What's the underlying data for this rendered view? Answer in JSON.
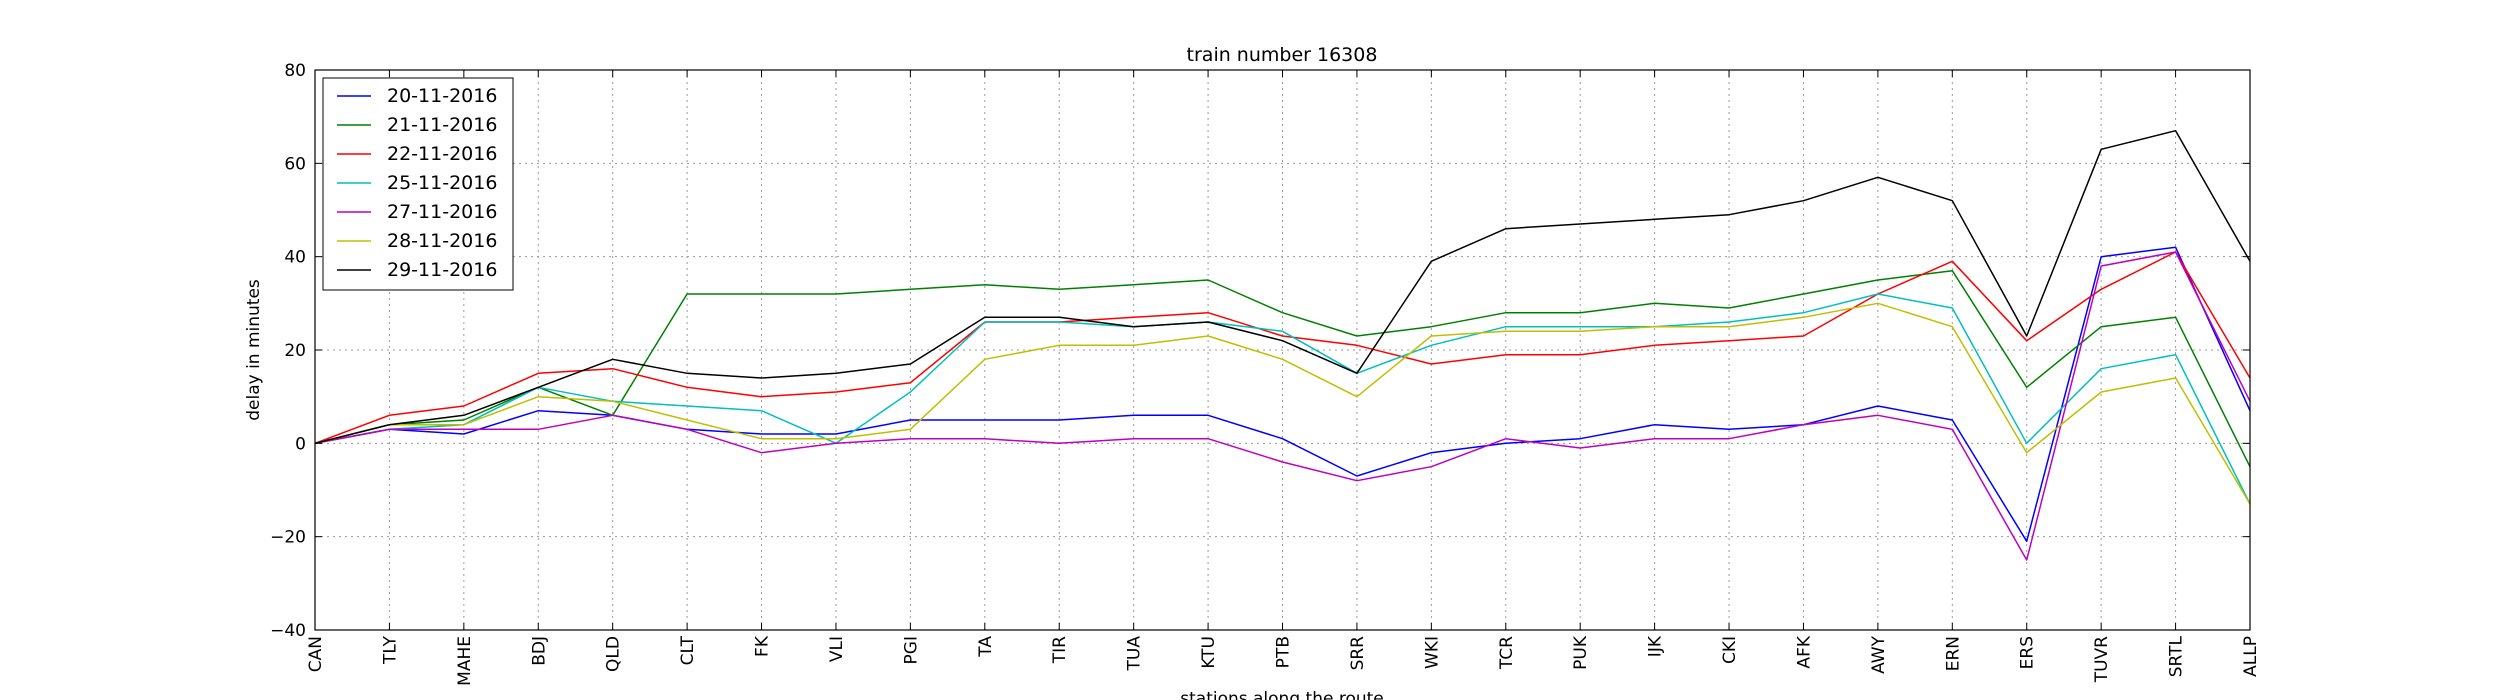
{
  "chart_data": {
    "type": "line",
    "title": "train number 16308",
    "xlabel": "stations along the route",
    "ylabel": "delay in minutes",
    "ylim": [
      -40,
      80
    ],
    "yticks": [
      -40,
      -20,
      0,
      20,
      40,
      60,
      80
    ],
    "grid": true,
    "legend_position": "top-left",
    "categories": [
      "CAN",
      "TLY",
      "MAHE",
      "BDJ",
      "QLD",
      "CLT",
      "FK",
      "VLI",
      "PGI",
      "TA",
      "TIR",
      "TUA",
      "KTU",
      "PTB",
      "SRR",
      "WKI",
      "TCR",
      "PUK",
      "IJK",
      "CKI",
      "AFK",
      "AWY",
      "ERN",
      "ERS",
      "TUVR",
      "SRTL",
      "ALLP"
    ],
    "series": [
      {
        "name": "20-11-2016",
        "color": "#0000ff",
        "values": [
          0,
          3,
          2,
          7,
          6,
          3,
          2,
          2,
          5,
          5,
          5,
          6,
          6,
          1,
          -7,
          -2,
          0,
          1,
          4,
          3,
          4,
          8,
          5,
          -21,
          40,
          42,
          7
        ]
      },
      {
        "name": "21-11-2016",
        "color": "#008000",
        "values": [
          0,
          4,
          5,
          12,
          6,
          32,
          32,
          32,
          33,
          34,
          33,
          34,
          35,
          28,
          23,
          25,
          28,
          28,
          30,
          29,
          32,
          35,
          37,
          12,
          25,
          27,
          -5
        ]
      },
      {
        "name": "22-11-2016",
        "color": "#ff0000",
        "values": [
          0,
          6,
          8,
          15,
          16,
          12,
          10,
          11,
          13,
          26,
          26,
          27,
          28,
          23,
          21,
          17,
          19,
          19,
          21,
          22,
          23,
          32,
          39,
          22,
          33,
          41,
          14
        ]
      },
      {
        "name": "25-11-2016",
        "color": "#00bfbf",
        "values": [
          0,
          3,
          4,
          12,
          9,
          8,
          7,
          0,
          11,
          26,
          26,
          25,
          26,
          24,
          15,
          21,
          25,
          25,
          25,
          26,
          28,
          32,
          29,
          0,
          16,
          19,
          -13
        ]
      },
      {
        "name": "27-11-2016",
        "color": "#bf00bf",
        "values": [
          0,
          3,
          3,
          3,
          6,
          3,
          -2,
          0,
          1,
          1,
          0,
          1,
          1,
          -4,
          -8,
          -5,
          1,
          -1,
          1,
          1,
          4,
          6,
          3,
          -25,
          38,
          41,
          9
        ]
      },
      {
        "name": "28-11-2016",
        "color": "#bfbf00",
        "values": [
          0,
          4,
          4,
          10,
          9,
          5,
          1,
          1,
          3,
          18,
          21,
          21,
          23,
          18,
          10,
          23,
          24,
          24,
          25,
          25,
          27,
          30,
          25,
          -2,
          11,
          14,
          -13
        ]
      },
      {
        "name": "29-11-2016",
        "color": "#000000",
        "values": [
          0,
          4,
          6,
          12,
          18,
          15,
          14,
          15,
          17,
          27,
          27,
          25,
          26,
          22,
          15,
          39,
          46,
          47,
          48,
          49,
          52,
          57,
          52,
          23,
          63,
          67,
          39
        ]
      }
    ]
  }
}
